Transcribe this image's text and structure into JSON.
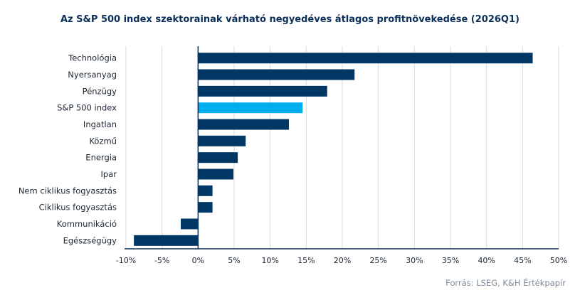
{
  "chart_data": {
    "type": "bar",
    "orientation": "horizontal",
    "title": "Az S&P 500 index szektorainak  várható negyedéves átlagos profitnövekedése (2026Q1)",
    "categories": [
      "Technológia",
      "Nyersanyag",
      "Pénzügy",
      "S&P 500 index",
      "Ingatlan",
      "Közmű",
      "Energia",
      "Ipar",
      "Nem ciklikus fogyasztás",
      "Ciklikus fogyasztás",
      "Kommunikáció",
      "Egészségügy"
    ],
    "values": [
      46.4,
      21.7,
      17.9,
      14.5,
      12.6,
      6.6,
      5.5,
      4.9,
      2.0,
      2.0,
      -2.4,
      -8.9
    ],
    "highlight": "S&P 500 index",
    "xlim": [
      -10,
      50
    ],
    "xticks": [
      -10,
      -5,
      0,
      5,
      10,
      15,
      20,
      25,
      30,
      35,
      40,
      45,
      50
    ],
    "xtick_labels": [
      "-10%",
      "-5%",
      "0%",
      "5%",
      "10%",
      "15%",
      "20%",
      "25%",
      "30%",
      "35%",
      "40%",
      "45%",
      "50%"
    ],
    "xlabel": "",
    "ylabel": "",
    "grid": true,
    "colors": {
      "bar": "#003764",
      "highlight": "#00aeef",
      "grid": "#d9d9d9",
      "axis": "#0b2f5b"
    }
  },
  "source": "Forrás: LSEG, K&H Értékpapír"
}
